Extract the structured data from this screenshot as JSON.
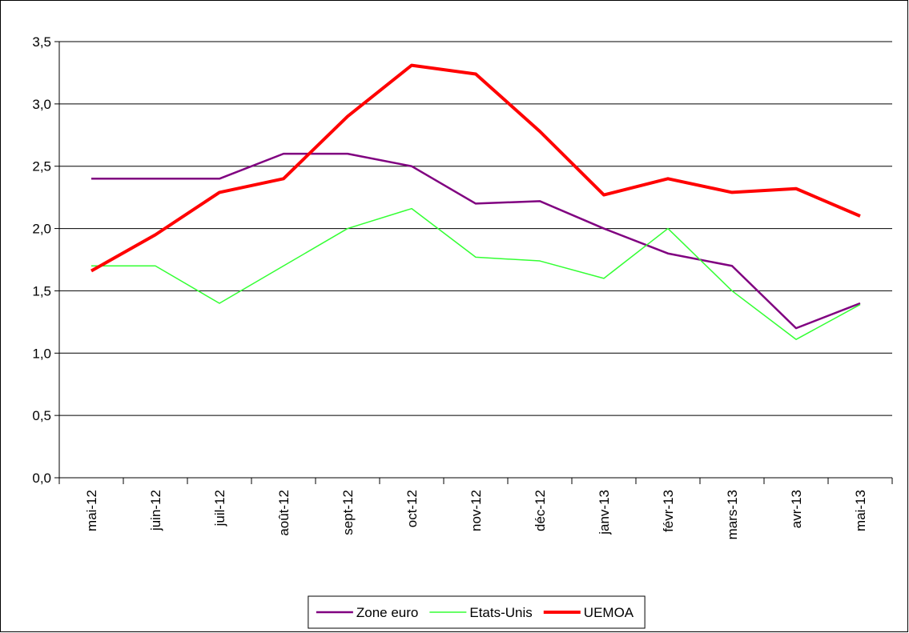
{
  "chart_data": {
    "type": "line",
    "categories": [
      "mai-12",
      "juin-12",
      "juil-12",
      "août-12",
      "sept-12",
      "oct-12",
      "nov-12",
      "déc-12",
      "janv-13",
      "févr-13",
      "mars-13",
      "avr-13",
      "mai-13"
    ],
    "series": [
      {
        "name": "Zone euro",
        "color": "#800080",
        "values": [
          2.4,
          2.4,
          2.4,
          2.6,
          2.6,
          2.5,
          2.2,
          2.22,
          2.0,
          1.8,
          1.7,
          1.2,
          1.4
        ]
      },
      {
        "name": "Etats-Unis",
        "color": "#33ff33",
        "values": [
          1.7,
          1.7,
          1.4,
          1.7,
          2.0,
          2.16,
          1.77,
          1.74,
          1.6,
          2.0,
          1.5,
          1.11,
          1.39
        ]
      },
      {
        "name": "UEMOA",
        "color": "#ff0000",
        "values": [
          1.66,
          1.95,
          2.29,
          2.4,
          2.9,
          3.31,
          3.24,
          2.78,
          2.27,
          2.4,
          2.29,
          2.32,
          2.1
        ]
      }
    ],
    "ylim": [
      0,
      3.5
    ],
    "yticks": [
      {
        "value": 0,
        "label": "0,0"
      },
      {
        "value": 0.5,
        "label": "0,5"
      },
      {
        "value": 1,
        "label": "1,0"
      },
      {
        "value": 1.5,
        "label": "1,5"
      },
      {
        "value": 2,
        "label": "2,0"
      },
      {
        "value": 2.5,
        "label": "2,5"
      },
      {
        "value": 3,
        "label": "3,0"
      },
      {
        "value": 3.5,
        "label": "3,5"
      }
    ],
    "grid": true,
    "legend": "bottom"
  }
}
